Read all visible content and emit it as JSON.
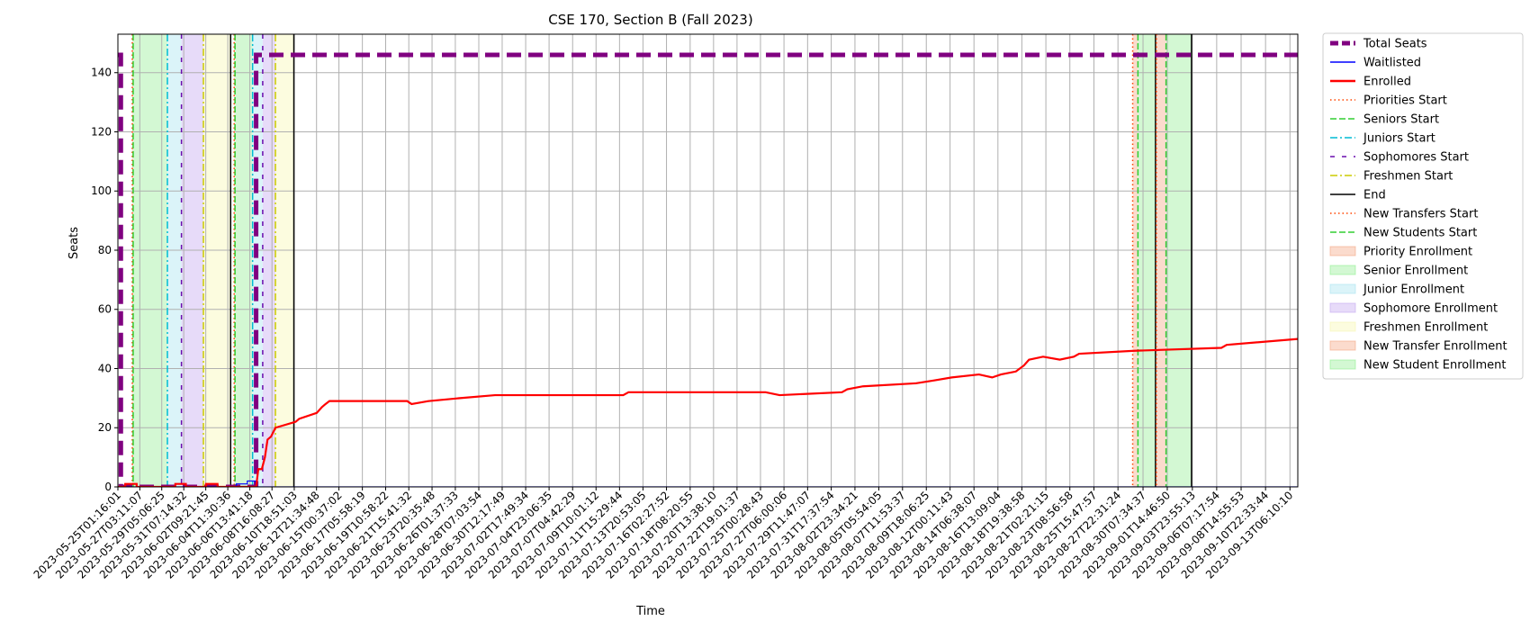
{
  "chart_data": {
    "type": "line",
    "title": "CSE 170, Section B (Fall 2023)",
    "xlabel": "Time",
    "ylabel": "Seats",
    "xlim": [
      "2023-05-25T01:16:01",
      "2023-09-14T00:00:00"
    ],
    "ylim": [
      0,
      153
    ],
    "y_ticks": [
      0,
      20,
      40,
      60,
      80,
      100,
      120,
      140
    ],
    "grid": true,
    "legend_position": "outside-right",
    "x_tick_labels": [
      "2023-05-25T01:16:01",
      "2023-05-27T03:11:07",
      "2023-05-29T05:06:25",
      "2023-05-31T07:14:32",
      "2023-06-02T09:21:45",
      "2023-06-04T11:30:36",
      "2023-06-06T13:41:18",
      "2023-06-08T16:08:27",
      "2023-06-10T18:51:03",
      "2023-06-12T21:34:48",
      "2023-06-15T00:37:02",
      "2023-06-17T05:58:19",
      "2023-06-19T10:58:22",
      "2023-06-21T15:41:32",
      "2023-06-23T20:35:48",
      "2023-06-26T01:37:33",
      "2023-06-28T07:03:54",
      "2023-06-30T12:17:49",
      "2023-07-02T17:49:34",
      "2023-07-04T23:06:35",
      "2023-07-07T04:42:29",
      "2023-07-09T10:01:12",
      "2023-07-11T15:29:44",
      "2023-07-13T20:53:05",
      "2023-07-16T02:27:52",
      "2023-07-18T08:20:55",
      "2023-07-20T13:38:10",
      "2023-07-22T19:01:37",
      "2023-07-25T00:28:43",
      "2023-07-27T06:00:06",
      "2023-07-29T11:47:07",
      "2023-07-31T17:37:54",
      "2023-08-02T23:34:21",
      "2023-08-05T05:54:05",
      "2023-08-07T11:53:37",
      "2023-08-09T18:06:25",
      "2023-08-12T00:11:43",
      "2023-08-14T06:38:07",
      "2023-08-16T13:09:04",
      "2023-08-18T19:38:58",
      "2023-08-21T02:21:15",
      "2023-08-23T08:56:58",
      "2023-08-25T15:47:57",
      "2023-08-27T22:31:24",
      "2023-08-30T07:34:37",
      "2023-09-01T14:46:50",
      "2023-09-03T23:55:13",
      "2023-09-06T07:17:54",
      "2023-09-08T14:55:53",
      "2023-09-10T22:33:44",
      "2023-09-13T06:10:10"
    ],
    "series": [
      {
        "name": "Total Seats",
        "color": "#800080",
        "style": "dashed-thick",
        "x": [
          "2023-05-25T01:16:01",
          "2023-05-25T08:00:00",
          "2023-05-25T08:00:00",
          "2023-06-07T04:00:00",
          "2023-06-07T04:00:00",
          "2023-06-07T18:00:00",
          "2023-06-07T18:00:00",
          "2023-09-14T00:00:00"
        ],
        "y": [
          146,
          146,
          0,
          0,
          146,
          146,
          146,
          146
        ]
      },
      {
        "name": "Waitlisted",
        "color": "#0000ff",
        "style": "solid",
        "x": [
          "2023-05-25T01:16:01",
          "2023-06-05T07:00:00",
          "2023-06-05T07:00:00",
          "2023-06-06T08:00:00",
          "2023-06-06T08:00:00",
          "2023-06-07T03:00:00",
          "2023-06-07T03:00:00",
          "2023-09-14T00:00:00"
        ],
        "y": [
          0,
          0,
          1,
          1,
          2,
          2,
          0,
          0
        ]
      },
      {
        "name": "Enrolled",
        "color": "#ff0000",
        "style": "solid",
        "x": [
          "2023-05-25T01:16:01",
          "2023-05-25T18:00:00",
          "2023-05-25T18:00:00",
          "2023-05-26T20:00:00",
          "2023-05-26T20:00:00",
          "2023-05-30T12:00:00",
          "2023-05-30T12:00:00",
          "2023-05-31T12:00:00",
          "2023-05-31T12:00:00",
          "2023-06-02T10:00:00",
          "2023-06-02T10:00:00",
          "2023-06-03T12:00:00",
          "2023-06-03T12:00:00",
          "2023-06-07T04:00:00",
          "2023-06-07T09:00:00",
          "2023-06-07T17:00:00",
          "2023-06-08T00:00:00",
          "2023-06-08T06:00:00",
          "2023-06-08T14:00:00",
          "2023-06-08T14:00:00",
          "2023-06-09T00:00:00",
          "2023-06-09T00:00:00",
          "2023-06-10T22:00:00",
          "2023-06-10T22:00:00",
          "2023-06-11T06:00:00",
          "2023-06-11T06:00:00",
          "2023-06-12T22:00:00",
          "2023-06-12T22:00:00",
          "2023-06-13T10:00:00",
          "2023-06-13T10:00:00",
          "2023-06-13T18:00:00",
          "2023-06-13T18:00:00",
          "2023-06-14T03:00:00",
          "2023-06-14T03:00:00",
          "2023-06-14T12:00:00",
          "2023-06-14T12:00:00",
          "2023-06-21T12:00:00",
          "2023-06-21T12:00:00",
          "2023-06-21T22:00:00",
          "2023-06-21T22:00:00",
          "2023-06-23T12:00:00",
          "2023-06-23T12:00:00",
          "2023-06-26T12:00:00",
          "2023-06-26T12:00:00",
          "2023-06-29T20:00:00",
          "2023-06-29T20:00:00",
          "2023-07-12T00:00:00",
          "2023-07-12T00:00:00",
          "2023-07-12T12:00:00",
          "2023-07-12T12:00:00",
          "2023-07-13T20:00:00",
          "2023-07-13T20:00:00",
          "2023-07-25T12:00:00",
          "2023-07-25T12:00:00",
          "2023-07-26T20:00:00",
          "2023-07-26T20:00:00",
          "2023-08-01T18:00:00",
          "2023-08-01T18:00:00",
          "2023-08-02T06:00:00",
          "2023-08-02T06:00:00",
          "2023-08-03T18:00:00",
          "2023-08-03T18:00:00",
          "2023-08-08T18:00:00",
          "2023-08-08T18:00:00",
          "2023-08-10T12:00:00",
          "2023-08-10T12:00:00",
          "2023-08-12T04:00:00",
          "2023-08-12T04:00:00",
          "2023-08-14T18:00:00",
          "2023-08-14T18:00:00",
          "2023-08-16T00:00:00",
          "2023-08-16T00:00:00",
          "2023-08-16T20:00:00",
          "2023-08-16T20:00:00",
          "2023-08-18T06:00:00",
          "2023-08-18T06:00:00",
          "2023-08-19T00:00:00",
          "2023-08-19T00:00:00",
          "2023-08-19T12:00:00",
          "2023-08-19T12:00:00",
          "2023-08-20T20:00:00",
          "2023-08-20T20:00:00",
          "2023-08-22T10:00:00",
          "2023-08-22T10:00:00",
          "2023-08-23T18:00:00",
          "2023-08-23T18:00:00",
          "2023-08-24T06:00:00",
          "2023-08-24T06:00:00",
          "2023-08-29T12:00:00",
          "2023-08-29T12:00:00",
          "2023-09-06T18:00:00",
          "2023-09-06T18:00:00",
          "2023-09-07T06:00:00",
          "2023-09-07T06:00:00",
          "2023-09-14T00:00:00"
        ],
        "y": [
          0,
          0,
          1,
          1,
          0,
          0,
          1,
          1,
          0,
          0,
          1,
          1,
          0,
          0,
          6,
          6,
          10,
          16,
          17,
          17,
          20,
          20,
          22,
          22,
          23,
          23,
          25,
          25,
          27,
          27,
          28,
          28,
          29,
          29,
          29,
          29,
          29,
          29,
          28,
          28,
          29,
          29,
          30,
          30,
          31,
          31,
          31,
          31,
          32,
          32,
          32,
          32,
          32,
          32,
          31,
          31,
          32,
          32,
          33,
          33,
          34,
          34,
          35,
          35,
          36,
          36,
          37,
          37,
          38,
          38,
          37,
          37,
          38,
          38,
          39,
          39,
          41,
          41,
          43,
          43,
          44,
          44,
          43,
          43,
          44,
          44,
          45,
          45,
          46,
          46,
          47,
          47,
          48,
          48,
          50
        ]
      }
    ],
    "vertical_lines": [
      {
        "name": "Priorities Start",
        "color": "#ff4500",
        "style": "dotted",
        "x": [
          "2023-05-26T10:00:00",
          "2023-06-05T02:00:00",
          "2023-08-29T08:00:00"
        ]
      },
      {
        "name": "Seniors Start",
        "color": "#32cd32",
        "style": "dashed",
        "x": [
          "2023-05-26T12:00:00",
          "2023-06-05T04:00:00",
          "2023-08-29T20:00:00"
        ]
      },
      {
        "name": "Juniors Start",
        "color": "#00bcd4",
        "style": "dashdot",
        "x": [
          "2023-05-29T18:00:00",
          "2023-06-06T20:00:00"
        ]
      },
      {
        "name": "Sophomores Start",
        "color": "#6a0dad",
        "style": "sparse-dash",
        "x": [
          "2023-05-31T02:00:00",
          "2023-06-07T19:00:00"
        ]
      },
      {
        "name": "Freshmen Start",
        "color": "#cccc00",
        "style": "dashdot",
        "x": [
          "2023-06-02T04:00:00",
          "2023-06-09T00:00:00"
        ]
      },
      {
        "name": "End",
        "color": "#000000",
        "style": "solid",
        "x": [
          "2023-06-04T18:00:00",
          "2023-06-10T18:00:00",
          "2023-08-31T12:00:00",
          "2023-09-03T22:00:00"
        ]
      },
      {
        "name": "New Transfers Start",
        "color": "#ff4500",
        "style": "dotted",
        "x": [
          "2023-08-31T14:00:00"
        ]
      },
      {
        "name": "New Students Start",
        "color": "#32cd32",
        "style": "dashed",
        "x": [
          "2023-09-01T12:00:00"
        ]
      }
    ],
    "shaded_regions": [
      {
        "name": "Priority Enrollment",
        "color": "#f4a582",
        "x": [
          [
            "2023-05-26T10:00:00",
            "2023-05-26T12:00:00"
          ],
          [
            "2023-06-05T02:00:00",
            "2023-06-05T04:00:00"
          ],
          [
            "2023-08-29T08:00:00",
            "2023-08-29T20:00:00"
          ]
        ]
      },
      {
        "name": "Senior Enrollment",
        "color": "#90ee90",
        "x": [
          [
            "2023-05-26T12:00:00",
            "2023-05-29T18:00:00"
          ],
          [
            "2023-06-05T04:00:00",
            "2023-06-06T20:00:00"
          ],
          [
            "2023-08-29T20:00:00",
            "2023-08-31T12:00:00"
          ]
        ]
      },
      {
        "name": "Junior Enrollment",
        "color": "#a6e3f0",
        "x": [
          [
            "2023-05-29T18:00:00",
            "2023-05-31T02:00:00"
          ],
          [
            "2023-06-06T20:00:00",
            "2023-06-07T19:00:00"
          ]
        ]
      },
      {
        "name": "Sophomore Enrollment",
        "color": "#c3a6f0",
        "x": [
          [
            "2023-05-31T02:00:00",
            "2023-06-02T04:00:00"
          ],
          [
            "2023-06-07T19:00:00",
            "2023-06-09T00:00:00"
          ]
        ]
      },
      {
        "name": "Freshmen Enrollment",
        "color": "#f7f7b0",
        "x": [
          [
            "2023-06-02T04:00:00",
            "2023-06-04T18:00:00"
          ],
          [
            "2023-06-09T00:00:00",
            "2023-06-10T18:00:00"
          ]
        ]
      },
      {
        "name": "New Transfer Enrollment",
        "color": "#f4a582",
        "x": [
          [
            "2023-08-31T14:00:00",
            "2023-09-01T12:00:00"
          ]
        ]
      },
      {
        "name": "New Student Enrollment",
        "color": "#90ee90",
        "x": [
          [
            "2023-09-01T12:00:00",
            "2023-09-03T22:00:00"
          ]
        ]
      }
    ],
    "legend_entries": [
      {
        "label": "Total Seats",
        "kind": "line",
        "color": "#800080",
        "style": "dashed-thick"
      },
      {
        "label": "Waitlisted",
        "kind": "line",
        "color": "#0000ff",
        "style": "solid"
      },
      {
        "label": "Enrolled",
        "kind": "line",
        "color": "#ff0000",
        "style": "solid-thick"
      },
      {
        "label": "Priorities Start",
        "kind": "line",
        "color": "#ff4500",
        "style": "dotted"
      },
      {
        "label": "Seniors Start",
        "kind": "line",
        "color": "#32cd32",
        "style": "dashed"
      },
      {
        "label": "Juniors Start",
        "kind": "line",
        "color": "#00bcd4",
        "style": "dashdot"
      },
      {
        "label": "Sophomores Start",
        "kind": "line",
        "color": "#6a0dad",
        "style": "sparse-dash"
      },
      {
        "label": "Freshmen Start",
        "kind": "line",
        "color": "#cccc00",
        "style": "dashdot"
      },
      {
        "label": "End",
        "kind": "line",
        "color": "#000000",
        "style": "solid"
      },
      {
        "label": "New Transfers Start",
        "kind": "line",
        "color": "#ff4500",
        "style": "dotted"
      },
      {
        "label": "New Students Start",
        "kind": "line",
        "color": "#32cd32",
        "style": "dashed"
      },
      {
        "label": "Priority Enrollment",
        "kind": "patch",
        "color": "#f4a582"
      },
      {
        "label": "Senior Enrollment",
        "kind": "patch",
        "color": "#90ee90"
      },
      {
        "label": "Junior Enrollment",
        "kind": "patch",
        "color": "#a6e3f0"
      },
      {
        "label": "Sophomore Enrollment",
        "kind": "patch",
        "color": "#c3a6f0"
      },
      {
        "label": "Freshmen Enrollment",
        "kind": "patch",
        "color": "#f7f7b0"
      },
      {
        "label": "New Transfer Enrollment",
        "kind": "patch",
        "color": "#f4a582"
      },
      {
        "label": "New Student Enrollment",
        "kind": "patch",
        "color": "#90ee90"
      }
    ]
  }
}
